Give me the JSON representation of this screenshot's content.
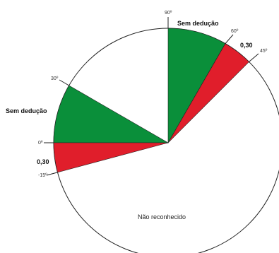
{
  "diagram": {
    "colors": {
      "deduction_free": "#0a8f3a",
      "deduction_030": "#e01e2b",
      "background": "#ffffff",
      "outline": "#222222"
    },
    "sectors": [
      {
        "from_deg": 60,
        "to_deg": 90,
        "color": "#0a8f3a",
        "label": "Sem dedução"
      },
      {
        "from_deg": 45,
        "to_deg": 60,
        "color": "#e01e2b",
        "label": "0,30"
      },
      {
        "from_deg": 0,
        "to_deg": 30,
        "color": "#0a8f3a",
        "label": "Sem dedução"
      },
      {
        "from_deg": -15,
        "to_deg": 0,
        "color": "#e01e2b",
        "label": "0,30"
      }
    ],
    "unrecognized_label": "Não reconhecido",
    "angle_labels": [
      "90º",
      "60º",
      "45º",
      "30º",
      "0º",
      "-15º"
    ]
  }
}
